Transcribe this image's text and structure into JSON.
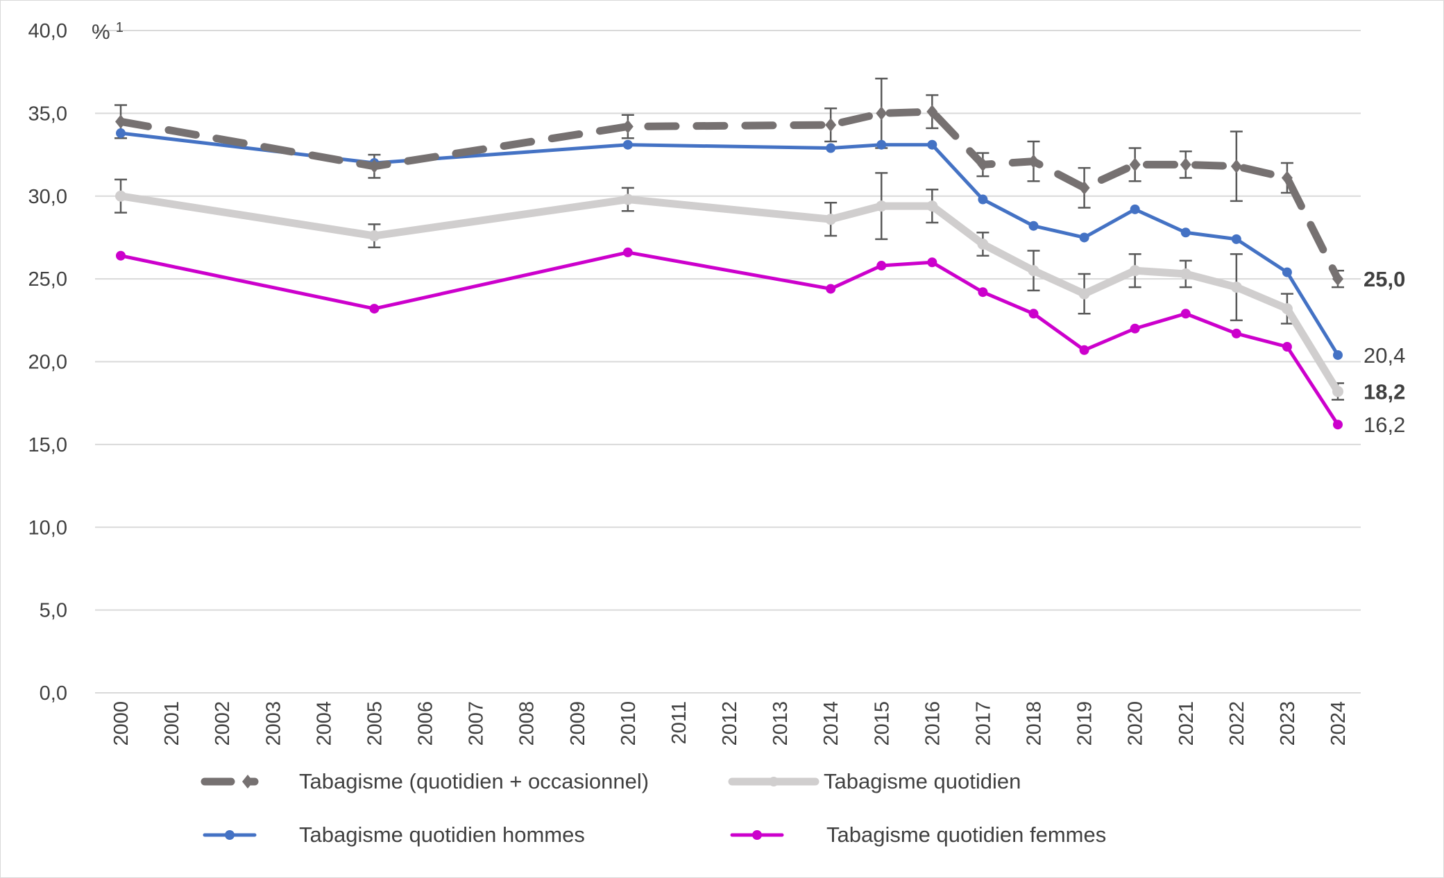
{
  "chart_data": {
    "type": "line",
    "unit_label": "%",
    "unit_footnote": "1",
    "ylim": [
      0,
      40
    ],
    "yticks": [
      "0,0",
      "5,0",
      "10,0",
      "15,0",
      "20,0",
      "25,0",
      "30,0",
      "35,0",
      "40,0"
    ],
    "ytick_values": [
      0,
      5,
      10,
      15,
      20,
      25,
      30,
      35,
      40
    ],
    "grid": true,
    "legend_placement": "bottom",
    "x_categories": [
      "2000",
      "2001",
      "2002",
      "2003",
      "2004",
      "2005",
      "2006",
      "2007",
      "2008",
      "2009",
      "2010",
      "2011",
      "2012",
      "2013",
      "2014",
      "2015",
      "2016",
      "2017",
      "2018",
      "2019",
      "2020",
      "2021",
      "2022",
      "2023",
      "2024"
    ],
    "x": [
      2000,
      2005,
      2010,
      2014,
      2015,
      2016,
      2017,
      2018,
      2019,
      2020,
      2021,
      2022,
      2023,
      2024
    ],
    "series": [
      {
        "name": "Tabagisme (quotidien + occasionnel)",
        "color": "#767171",
        "style": "dashed",
        "marker": "diamond",
        "values": [
          34.5,
          31.8,
          34.2,
          34.3,
          35.0,
          35.1,
          31.9,
          32.1,
          30.5,
          31.9,
          31.9,
          31.8,
          31.1,
          25.0
        ],
        "error": [
          1.0,
          0.7,
          0.7,
          1.0,
          2.1,
          1.0,
          0.7,
          1.2,
          1.2,
          1.0,
          0.8,
          2.1,
          0.9,
          0.5
        ],
        "end_label": "25,0",
        "end_label_bold": true
      },
      {
        "name": "Tabagisme quotidien",
        "color": "#d0cece",
        "style": "solid",
        "marker": "circle",
        "values": [
          30.0,
          27.6,
          29.8,
          28.6,
          29.4,
          29.4,
          27.1,
          25.5,
          24.1,
          25.5,
          25.3,
          24.5,
          23.2,
          18.2
        ],
        "error": [
          1.0,
          0.7,
          0.7,
          1.0,
          2.0,
          1.0,
          0.7,
          1.2,
          1.2,
          1.0,
          0.8,
          2.0,
          0.9,
          0.5
        ],
        "end_label": "18,2",
        "end_label_bold": true
      },
      {
        "name": "Tabagisme quotidien hommes",
        "color": "#4472c4",
        "style": "solid",
        "marker": "circle",
        "values": [
          33.8,
          32.0,
          33.1,
          32.9,
          33.1,
          33.1,
          29.8,
          28.2,
          27.5,
          29.2,
          27.8,
          27.4,
          25.4,
          20.4
        ],
        "end_label": "20,4",
        "end_label_bold": false
      },
      {
        "name": "Tabagisme quotidien femmes",
        "color": "#cc00cc",
        "style": "solid",
        "marker": "circle",
        "values": [
          26.4,
          23.2,
          26.6,
          24.4,
          25.8,
          26.0,
          24.2,
          22.9,
          20.7,
          22.0,
          22.9,
          21.7,
          20.9,
          16.2
        ],
        "end_label": "16,2",
        "end_label_bold": false
      }
    ]
  }
}
